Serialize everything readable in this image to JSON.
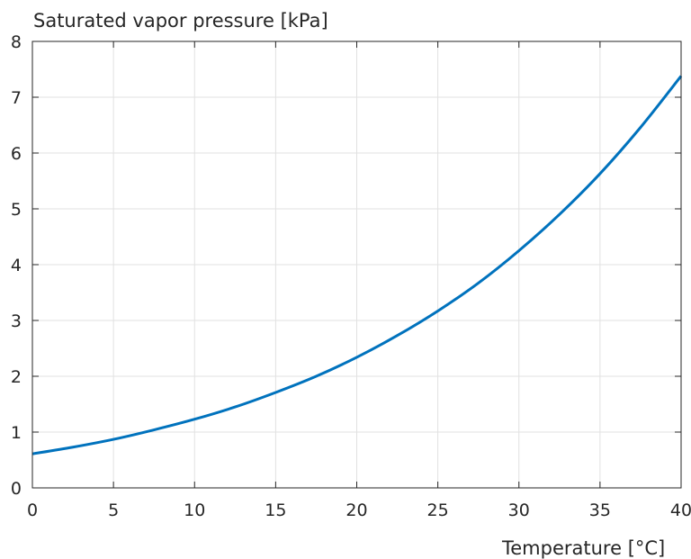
{
  "chart_data": {
    "type": "line",
    "title": "",
    "xlabel": "Temperature [°C]",
    "ylabel": "Saturated vapor pressure [kPa]",
    "xlim": [
      0,
      40
    ],
    "ylim": [
      0,
      8
    ],
    "xticks": [
      0,
      5,
      10,
      15,
      20,
      25,
      30,
      35,
      40
    ],
    "yticks": [
      0,
      1,
      2,
      3,
      4,
      5,
      6,
      7,
      8
    ],
    "grid": true,
    "legend": "none",
    "series": [
      {
        "color": "#0072bd",
        "x": [
          0,
          2.5,
          5,
          7.5,
          10,
          12.5,
          15,
          17.5,
          20,
          22.5,
          25,
          27.5,
          30,
          32.5,
          35,
          37.5,
          40
        ],
        "y": [
          0.61,
          0.73,
          0.87,
          1.04,
          1.23,
          1.45,
          1.71,
          2.0,
          2.34,
          2.73,
          3.17,
          3.67,
          4.25,
          4.9,
          5.63,
          6.46,
          7.38
        ]
      }
    ],
    "colors": {
      "axis": "#262626",
      "grid": "#e1e1e1"
    }
  }
}
